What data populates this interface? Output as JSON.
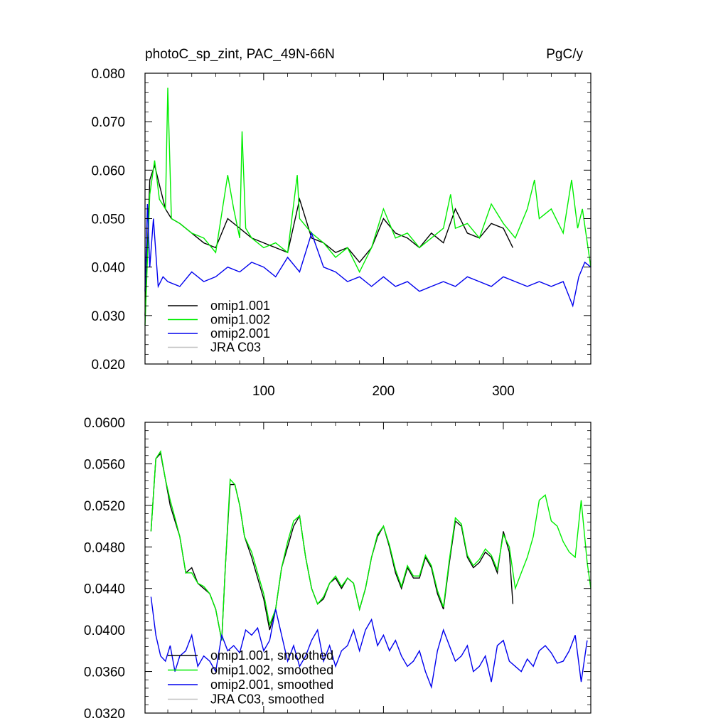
{
  "chart_data": [
    {
      "type": "line",
      "title": "photoC_sp_zint, PAC_49N-66N",
      "units": "PgC/y",
      "xlabel": "",
      "ylabel": "",
      "xlim": [
        1,
        373
      ],
      "ylim": [
        0.02,
        0.08
      ],
      "x_ticks": [
        100,
        200,
        300
      ],
      "x_tick_labels": [
        "100",
        "200",
        "300"
      ],
      "y_ticks": [
        0.02,
        0.03,
        0.04,
        0.05,
        0.06,
        0.07,
        0.08
      ],
      "y_tick_labels": [
        "0.020",
        "0.030",
        "0.040",
        "0.050",
        "0.060",
        "0.070",
        "0.080"
      ],
      "legend_position": "bottom-left",
      "series": [
        {
          "name": "omip1.001",
          "color": "#000000",
          "x": [
            1,
            5,
            9,
            13,
            18,
            23,
            30,
            40,
            50,
            60,
            70,
            80,
            90,
            100,
            110,
            120,
            130,
            140,
            150,
            160,
            170,
            180,
            190,
            200,
            210,
            220,
            230,
            240,
            250,
            260,
            270,
            280,
            290,
            300,
            308
          ],
          "y": [
            0.03,
            0.058,
            0.061,
            0.057,
            0.052,
            0.05,
            0.049,
            0.047,
            0.045,
            0.044,
            0.05,
            0.048,
            0.046,
            0.045,
            0.044,
            0.043,
            0.054,
            0.046,
            0.045,
            0.043,
            0.044,
            0.041,
            0.044,
            0.05,
            0.047,
            0.046,
            0.044,
            0.047,
            0.045,
            0.052,
            0.047,
            0.046,
            0.049,
            0.048,
            0.044
          ]
        },
        {
          "name": "omip1.002",
          "color": "#00ee00",
          "x": [
            1,
            5,
            9,
            13,
            18,
            20,
            23,
            30,
            40,
            50,
            60,
            70,
            75,
            80,
            82,
            85,
            90,
            100,
            110,
            120,
            128,
            130,
            140,
            150,
            160,
            170,
            180,
            190,
            200,
            210,
            220,
            230,
            240,
            250,
            256,
            260,
            270,
            280,
            290,
            300,
            310,
            320,
            326,
            330,
            340,
            350,
            357,
            362,
            366,
            373
          ],
          "y": [
            0.028,
            0.055,
            0.062,
            0.054,
            0.052,
            0.077,
            0.05,
            0.049,
            0.047,
            0.046,
            0.043,
            0.059,
            0.052,
            0.046,
            0.068,
            0.048,
            0.046,
            0.044,
            0.045,
            0.043,
            0.059,
            0.05,
            0.047,
            0.045,
            0.042,
            0.044,
            0.039,
            0.044,
            0.052,
            0.046,
            0.047,
            0.044,
            0.046,
            0.048,
            0.055,
            0.048,
            0.049,
            0.046,
            0.053,
            0.049,
            0.046,
            0.052,
            0.058,
            0.05,
            0.052,
            0.047,
            0.058,
            0.048,
            0.052,
            0.04
          ]
        },
        {
          "name": "omip2.001",
          "color": "#0000ee",
          "x": [
            1,
            3,
            5,
            8,
            12,
            16,
            20,
            30,
            40,
            50,
            60,
            70,
            80,
            90,
            100,
            110,
            120,
            130,
            140,
            150,
            160,
            170,
            180,
            190,
            200,
            210,
            220,
            230,
            240,
            250,
            260,
            270,
            280,
            290,
            300,
            310,
            320,
            330,
            340,
            350,
            358,
            363,
            368,
            373
          ],
          "y": [
            0.035,
            0.053,
            0.04,
            0.05,
            0.036,
            0.038,
            0.037,
            0.036,
            0.039,
            0.037,
            0.038,
            0.04,
            0.039,
            0.041,
            0.04,
            0.038,
            0.042,
            0.039,
            0.047,
            0.04,
            0.039,
            0.037,
            0.038,
            0.036,
            0.038,
            0.036,
            0.037,
            0.035,
            0.036,
            0.037,
            0.036,
            0.038,
            0.037,
            0.036,
            0.038,
            0.037,
            0.036,
            0.037,
            0.036,
            0.037,
            0.032,
            0.038,
            0.041,
            0.04
          ]
        },
        {
          "name": "JRA C03",
          "color": "#c0c0c0",
          "x": [],
          "y": []
        }
      ]
    },
    {
      "type": "line",
      "title": "",
      "xlabel": "",
      "ylabel": "",
      "xlim": [
        1,
        373
      ],
      "ylim": [
        0.032,
        0.06
      ],
      "x_ticks": [
        100,
        200,
        300
      ],
      "y_ticks": [
        0.032,
        0.036,
        0.04,
        0.044,
        0.048,
        0.052,
        0.056,
        0.06
      ],
      "y_tick_labels": [
        "0.0320",
        "0.0360",
        "0.0400",
        "0.0440",
        "0.0480",
        "0.0520",
        "0.0560",
        "0.0600"
      ],
      "legend_position": "bottom-left",
      "series": [
        {
          "name": "omip1.001, smoothed",
          "color": "#000000",
          "x": [
            6,
            10,
            14,
            18,
            22,
            26,
            30,
            35,
            40,
            45,
            50,
            55,
            60,
            65,
            68,
            72,
            76,
            80,
            84,
            90,
            95,
            100,
            105,
            110,
            115,
            120,
            125,
            130,
            135,
            140,
            145,
            150,
            155,
            160,
            165,
            170,
            175,
            180,
            185,
            190,
            195,
            200,
            205,
            210,
            215,
            220,
            225,
            230,
            235,
            240,
            245,
            250,
            255,
            260,
            265,
            270,
            275,
            280,
            285,
            290,
            295,
            300,
            305,
            308
          ],
          "y": [
            0.0495,
            0.0565,
            0.057,
            0.0545,
            0.052,
            0.0505,
            0.049,
            0.0455,
            0.046,
            0.0445,
            0.044,
            0.0435,
            0.042,
            0.039,
            0.046,
            0.054,
            0.054,
            0.052,
            0.049,
            0.047,
            0.045,
            0.043,
            0.04,
            0.042,
            0.046,
            0.048,
            0.05,
            0.051,
            0.047,
            0.044,
            0.0425,
            0.043,
            0.0445,
            0.045,
            0.044,
            0.045,
            0.0445,
            0.042,
            0.044,
            0.047,
            0.049,
            0.05,
            0.048,
            0.0455,
            0.044,
            0.046,
            0.045,
            0.045,
            0.047,
            0.046,
            0.0435,
            0.042,
            0.0465,
            0.0505,
            0.05,
            0.047,
            0.046,
            0.0465,
            0.0475,
            0.047,
            0.0455,
            0.0495,
            0.0475,
            0.0425
          ]
        },
        {
          "name": "omip1.002, smoothed",
          "color": "#00ee00",
          "x": [
            6,
            10,
            14,
            18,
            22,
            26,
            30,
            35,
            40,
            45,
            50,
            55,
            60,
            65,
            68,
            72,
            76,
            80,
            84,
            90,
            95,
            100,
            105,
            110,
            115,
            120,
            125,
            130,
            135,
            140,
            145,
            150,
            155,
            160,
            165,
            170,
            175,
            180,
            185,
            190,
            195,
            200,
            205,
            210,
            215,
            220,
            225,
            230,
            235,
            240,
            245,
            250,
            255,
            260,
            265,
            270,
            275,
            280,
            285,
            290,
            295,
            300,
            305,
            310,
            315,
            320,
            325,
            330,
            335,
            340,
            345,
            350,
            355,
            360,
            365,
            370,
            373
          ],
          "y": [
            0.0495,
            0.0565,
            0.0572,
            0.0545,
            0.0525,
            0.0508,
            0.049,
            0.0455,
            0.0455,
            0.0445,
            0.0442,
            0.0435,
            0.042,
            0.039,
            0.046,
            0.0545,
            0.054,
            0.052,
            0.049,
            0.0475,
            0.0455,
            0.0435,
            0.0405,
            0.042,
            0.046,
            0.0485,
            0.0505,
            0.051,
            0.047,
            0.044,
            0.0425,
            0.0432,
            0.0445,
            0.0452,
            0.0442,
            0.045,
            0.0445,
            0.042,
            0.044,
            0.047,
            0.0492,
            0.05,
            0.0482,
            0.0458,
            0.0442,
            0.0462,
            0.0452,
            0.0452,
            0.0472,
            0.0462,
            0.0438,
            0.0422,
            0.0468,
            0.0508,
            0.0502,
            0.0472,
            0.0462,
            0.0468,
            0.0478,
            0.0472,
            0.0458,
            0.0492,
            0.048,
            0.044,
            0.0455,
            0.047,
            0.049,
            0.0525,
            0.053,
            0.0505,
            0.05,
            0.0485,
            0.0475,
            0.047,
            0.0525,
            0.0465,
            0.044
          ]
        },
        {
          "name": "omip2.001, smoothed",
          "color": "#0000ee",
          "x": [
            6,
            10,
            14,
            18,
            22,
            26,
            30,
            35,
            40,
            45,
            50,
            55,
            60,
            65,
            70,
            75,
            80,
            85,
            90,
            95,
            100,
            105,
            110,
            115,
            120,
            125,
            130,
            135,
            140,
            145,
            150,
            155,
            160,
            165,
            170,
            175,
            180,
            185,
            190,
            195,
            200,
            205,
            210,
            215,
            220,
            225,
            230,
            235,
            240,
            245,
            250,
            255,
            260,
            265,
            270,
            275,
            280,
            285,
            290,
            295,
            300,
            305,
            310,
            315,
            320,
            325,
            330,
            335,
            340,
            345,
            350,
            355,
            360,
            365,
            370
          ],
          "y": [
            0.0432,
            0.0395,
            0.0375,
            0.037,
            0.0385,
            0.036,
            0.0375,
            0.038,
            0.0395,
            0.0365,
            0.0375,
            0.037,
            0.036,
            0.0395,
            0.038,
            0.0385,
            0.0378,
            0.04,
            0.0395,
            0.0402,
            0.038,
            0.039,
            0.042,
            0.0395,
            0.037,
            0.0385,
            0.0365,
            0.0375,
            0.039,
            0.04,
            0.037,
            0.0385,
            0.0365,
            0.038,
            0.0385,
            0.04,
            0.038,
            0.04,
            0.041,
            0.0385,
            0.0395,
            0.038,
            0.039,
            0.0375,
            0.0365,
            0.037,
            0.038,
            0.036,
            0.0345,
            0.038,
            0.04,
            0.0385,
            0.037,
            0.0375,
            0.0385,
            0.036,
            0.0365,
            0.0375,
            0.035,
            0.0385,
            0.039,
            0.037,
            0.0365,
            0.036,
            0.0372,
            0.0365,
            0.038,
            0.0385,
            0.0378,
            0.0368,
            0.037,
            0.038,
            0.0395,
            0.035,
            0.039
          ]
        },
        {
          "name": "JRA C03, smoothed",
          "color": "#c0c0c0",
          "x": [],
          "y": []
        }
      ]
    }
  ]
}
